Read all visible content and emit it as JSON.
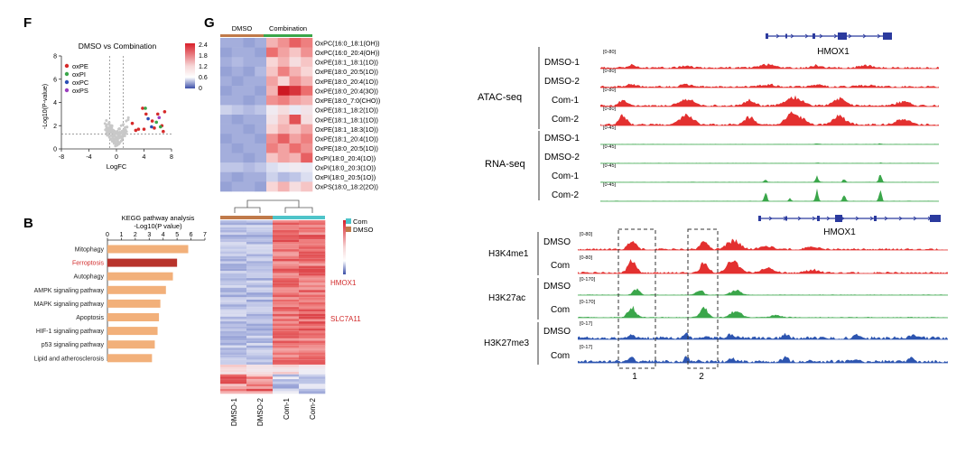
{
  "colors": {
    "ox_pe": "#d62a2a",
    "ox_pi": "#3aa64a",
    "ox_pc": "#2b4fb5",
    "ox_ps": "#9b3fc0",
    "kegg_bar": "#f2b07a",
    "kegg_highlight": "#b8332b",
    "ferroptosis_label": "#d22b2b",
    "dmso_bar": "#c07a4a",
    "combination_bar": "#3aa64a",
    "com_bar": "#4ec4c9",
    "atac": "#e3302f",
    "rna": "#3aa64a",
    "h3k4": "#e3302f",
    "h3k27ac": "#3aa64a",
    "h3k27me3": "#2d55b0",
    "gene_track": "#2b3a9e",
    "gene_label_red": "#d22b2b"
  },
  "panel_labels": {
    "f": "F",
    "b": "B",
    "g": "G"
  },
  "volcano": {
    "title": "DMSO vs Combination",
    "xlabel": "LogFC",
    "ylabel": "-Log10(P-value)",
    "xlim": [
      -8,
      8
    ],
    "ylim": [
      0,
      8
    ],
    "xticks": [
      "-8",
      "-4",
      "0",
      "4",
      "8"
    ],
    "yticks": [
      "0",
      "2",
      "4",
      "6",
      "8"
    ],
    "legend": [
      {
        "label": "oxPE",
        "color": "#d62a2a"
      },
      {
        "label": "oxPI",
        "color": "#3aa64a"
      },
      {
        "label": "oxPC",
        "color": "#2b4fb5"
      },
      {
        "label": "oxPS",
        "color": "#9b3fc0"
      }
    ]
  },
  "kegg": {
    "title": "KEGG pathway analysis",
    "subtitle": "-Log10(P value)",
    "ticks": [
      "0",
      "1",
      "2",
      "3",
      "4",
      "5",
      "6",
      "7"
    ]
  },
  "heatmap1": {
    "groups": [
      {
        "label": "DMSO"
      },
      {
        "label": "Combination"
      }
    ],
    "scale_ticks": [
      "2.4",
      "1.8",
      "1.2",
      "0.6",
      "0"
    ],
    "rows": [
      "OxPC(16:0_18:1(OH))",
      "OxPC(16:0_20:4(OH))",
      "OxPE(18:1_18:1(1O))",
      "OxPE(18:0_20:5(1O))",
      "OxPE(18:0_20:4(1O))",
      "OxPE(18:0_20:4(3O))",
      "OxPE(18:0_7:0(CHO))",
      "OxPE(18:1_18:2(1O))",
      "OxPE(18:1_18:1(1O))",
      "OxPE(18:1_18:3(1O))",
      "OxPE(18:1_20:4(1O))",
      "OxPE(18:0_20:5(1O))",
      "OxPI(18:0_20:4(1O))",
      "OxPI(18:0_20:3(1O))",
      "OxPI(18:0_20:5(1O))",
      "OxPS(18:0_18:2(2O))"
    ]
  },
  "heatmap2": {
    "legend": [
      "Com",
      "DMSO"
    ],
    "gene_labels": [
      "HMOX1",
      "SLC7A11"
    ],
    "columns": [
      "DMSO-1",
      "DMSO-2",
      "Com-1",
      "Com-2"
    ]
  },
  "tracks_top": {
    "gene": "HMOX1",
    "assays": [
      {
        "label": "ATAC-seq",
        "samples": [
          {
            "name": "DMSO-1",
            "range": "[0-80]"
          },
          {
            "name": "DMSO-2",
            "range": "[0-80]"
          },
          {
            "name": "Com-1",
            "range": "[0-80]"
          },
          {
            "name": "Com-2",
            "range": "[0-80]"
          }
        ]
      },
      {
        "label": "RNA-seq",
        "samples": [
          {
            "name": "DMSO-1",
            "range": "[0-45]"
          },
          {
            "name": "DMSO-2",
            "range": "[0-45]"
          },
          {
            "name": "Com-1",
            "range": "[0-45]"
          },
          {
            "name": "Com-2",
            "range": "[0-45]"
          }
        ]
      }
    ]
  },
  "tracks_bottom": {
    "gene": "HMOX1",
    "marks": [
      {
        "label": "H3K4me1",
        "samples": [
          {
            "name": "DMSO",
            "range": "[0-80]"
          },
          {
            "name": "Com",
            "range": "[0-80]"
          }
        ]
      },
      {
        "label": "H3K27ac",
        "samples": [
          {
            "name": "DMSO",
            "range": "[0-170]"
          },
          {
            "name": "Com",
            "range": "[0-170]"
          }
        ]
      },
      {
        "label": "H3K27me3",
        "samples": [
          {
            "name": "DMSO",
            "range": "[0-17]"
          },
          {
            "name": "Com",
            "range": "[0-17]"
          }
        ]
      }
    ],
    "regions": [
      "1",
      "2"
    ]
  },
  "chart_data": [
    {
      "type": "scatter",
      "title": "DMSO vs Combination",
      "xlabel": "LogFC",
      "ylabel": "-Log10(P-value)",
      "xlim": [
        -8,
        8
      ],
      "ylim": [
        0,
        8
      ],
      "legend": "top-left",
      "series": [
        {
          "name": "oxPE",
          "color": "#d62a2a",
          "points": [
            [
              2.3,
              2.2
            ],
            [
              3.8,
              3.5
            ],
            [
              4.3,
              3.0
            ],
            [
              5.2,
              2.4
            ],
            [
              6.0,
              3.0
            ],
            [
              6.6,
              2.0
            ],
            [
              7.0,
              3.2
            ],
            [
              3.2,
              1.7
            ],
            [
              5.5,
              1.8
            ],
            [
              2.8,
              1.6
            ],
            [
              4.0,
              1.7
            ],
            [
              6.8,
              1.5
            ]
          ]
        },
        {
          "name": "oxPI",
          "color": "#3aa64a",
          "points": [
            [
              4.2,
              3.5
            ],
            [
              5.8,
              2.3
            ],
            [
              6.4,
              1.9
            ]
          ]
        },
        {
          "name": "oxPC",
          "color": "#2b4fb5",
          "points": [
            [
              4.6,
              2.6
            ],
            [
              5.1,
              1.9
            ]
          ]
        },
        {
          "name": "oxPS",
          "color": "#9b3fc0",
          "points": [
            [
              6.2,
              2.7
            ]
          ]
        }
      ]
    },
    {
      "type": "bar",
      "title": "KEGG pathway analysis",
      "xlabel": "-Log10(P value)",
      "xlim": [
        0,
        7
      ],
      "categories": [
        "Mitophagy",
        "Ferroptosis",
        "Autophagy",
        "AMPK signaling pathway",
        "MAPK signaling pathway",
        "Apoptosis",
        "HIF-1 signaling pathway",
        "p53 signaling pathway",
        "Lipid and atherosclerosis"
      ],
      "values": [
        5.8,
        5.0,
        4.7,
        4.2,
        3.8,
        3.7,
        3.6,
        3.4,
        3.2
      ],
      "highlight": "Ferroptosis"
    },
    {
      "type": "heatmap",
      "columns": [
        "DMSO",
        "DMSO",
        "DMSO",
        "DMSO",
        "Combination",
        "Combination",
        "Combination",
        "Combination"
      ],
      "rows": [
        "OxPC(16:0_18:1(OH))",
        "OxPC(16:0_20:4(OH))",
        "OxPE(18:1_18:1(1O))",
        "OxPE(18:0_20:5(1O))",
        "OxPE(18:0_20:4(1O))",
        "OxPE(18:0_20:4(3O))",
        "OxPE(18:0_7:0(CHO))",
        "OxPE(18:1_18:2(1O))",
        "OxPE(18:1_18:1(1O))",
        "OxPE(18:1_18:3(1O))",
        "OxPE(18:1_20:4(1O))",
        "OxPE(18:0_20:5(1O))",
        "OxPI(18:0_20:4(1O))",
        "OxPI(18:0_20:3(1O))",
        "OxPI(18:0_20:5(1O))",
        "OxPS(18:0_18:2(2O))"
      ],
      "values": [
        [
          0.3,
          0.3,
          0.2,
          0.3,
          1.4,
          1.6,
          1.9,
          1.7
        ],
        [
          0.2,
          0.3,
          0.3,
          0.2,
          1.8,
          1.5,
          1.3,
          1.6
        ],
        [
          0.3,
          0.4,
          0.3,
          0.3,
          1.2,
          1.4,
          1.1,
          1.3
        ],
        [
          0.2,
          0.3,
          0.2,
          0.4,
          1.3,
          1.7,
          1.4,
          1.2
        ],
        [
          0.3,
          0.2,
          0.3,
          0.3,
          1.5,
          1.2,
          1.6,
          1.4
        ],
        [
          0.2,
          0.3,
          0.3,
          0.2,
          1.4,
          2.4,
          2.2,
          1.8
        ],
        [
          0.3,
          0.3,
          0.2,
          0.3,
          1.6,
          1.7,
          1.5,
          1.4
        ],
        [
          0.6,
          0.5,
          0.4,
          0.5,
          0.9,
          1.1,
          0.8,
          1.0
        ],
        [
          0.3,
          0.2,
          0.3,
          0.3,
          1.0,
          1.3,
          2.0,
          1.1
        ],
        [
          0.3,
          0.3,
          0.2,
          0.3,
          1.2,
          1.4,
          1.3,
          1.5
        ],
        [
          0.2,
          0.3,
          0.3,
          0.2,
          1.6,
          1.9,
          1.5,
          1.7
        ],
        [
          0.3,
          0.2,
          0.3,
          0.3,
          1.7,
          1.5,
          1.8,
          1.6
        ],
        [
          0.3,
          0.3,
          0.2,
          0.3,
          1.3,
          1.5,
          1.4,
          1.9
        ],
        [
          0.5,
          0.5,
          0.4,
          0.5,
          0.7,
          0.8,
          0.9,
          0.8
        ],
        [
          0.3,
          0.2,
          0.3,
          0.3,
          0.6,
          0.4,
          0.5,
          0.7
        ],
        [
          0.2,
          0.3,
          0.3,
          0.2,
          1.2,
          1.4,
          1.1,
          1.3
        ]
      ],
      "scale": [
        0,
        2.4
      ]
    }
  ]
}
